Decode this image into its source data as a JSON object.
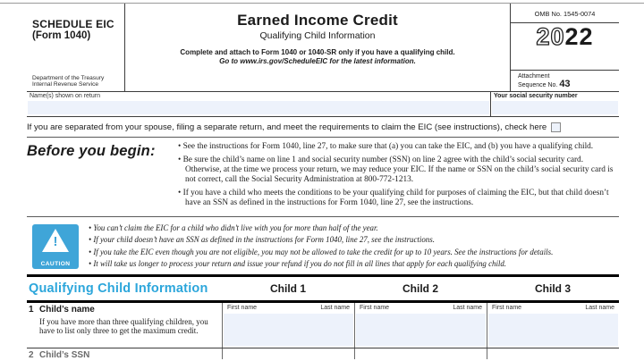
{
  "header": {
    "schedule": "SCHEDULE EIC",
    "form_number": "(Form 1040)",
    "agency_line1": "Department of the Treasury",
    "agency_line2": "Internal Revenue Service",
    "title": "Earned Income Credit",
    "subtitle": "Qualifying Child Information",
    "instruction1": "Complete and attach to Form 1040 or 1040-SR only if you have a qualifying child.",
    "instruction2": "Go to www.irs.gov/ScheduleEIC for the latest information.",
    "omb": "OMB No. 1545-0074",
    "year_prefix": "20",
    "year_suffix": "22",
    "attachment_line1": "Attachment",
    "attachment_line2": "Sequence No. ",
    "sequence_number": "43"
  },
  "identity": {
    "name_label": "Name(s) shown on return",
    "name_value": "",
    "ssn_label": "Your social security number",
    "ssn_value": ""
  },
  "separated_clause": {
    "text": "If you are separated from your spouse, filing a separate return, and meet the requirements to claim the EIC (see instructions), check here",
    "checkbox_checked": false
  },
  "before_you_begin": {
    "heading": "Before you begin:",
    "bullets": [
      "See the instructions for Form 1040, line 27, to make sure that (a) you can take the EIC, and (b) you have a qualifying child.",
      "Be sure the child’s name on line 1 and social security number (SSN) on line 2 agree with the child’s social security card. Otherwise, at the time we process your return, we may reduce your EIC. If the name or SSN on the child’s social security card is not correct, call the Social Security Administration at 800-772-1213.",
      "If you have a child who meets the conditions to be your qualifying child for purposes of claiming the EIC, but that child doesn’t have an SSN as defined in the instructions for Form 1040, line 27, see the instructions."
    ]
  },
  "caution": {
    "icon_label": "CAUTION",
    "icon_exclamation": "!",
    "bullets": [
      "You can’t claim the EIC for a child who didn’t live with you for more than half of the year.",
      "If your child doesn’t have an SSN as defined in the instructions for Form 1040, line 27, see the instructions.",
      "If you take the EIC even though you are not eligible, you may not be allowed to take the credit for up to 10 years. See the instructions for details.",
      "It will take us longer to process your return and issue your refund if you do not fill in all lines that apply for each qualifying child."
    ]
  },
  "table": {
    "section_title": "Qualifying Child Information",
    "columns": [
      "Child 1",
      "Child 2",
      "Child 3"
    ],
    "row1": {
      "number": "1",
      "label": "Child’s name",
      "note": "If you have more than three qualifying children, you have to list only three to get the maximum credit.",
      "sub_first": "First name",
      "sub_last": "Last name",
      "values": [
        "",
        "",
        ""
      ]
    },
    "row2": {
      "number": "2",
      "label": "Child’s SSN"
    }
  },
  "colors": {
    "accent_cyan": "#2ca6db",
    "caution_blue": "#3fa5d8",
    "input_fill": "#edf2fb"
  }
}
